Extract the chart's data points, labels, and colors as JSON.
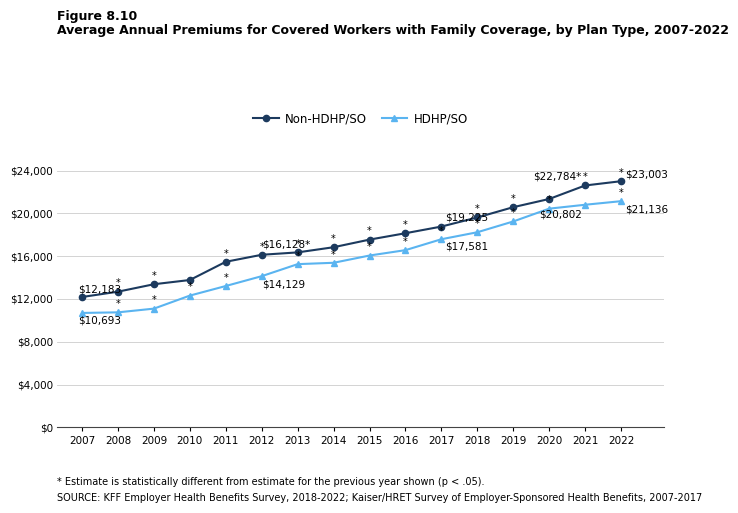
{
  "years": [
    2007,
    2008,
    2009,
    2010,
    2011,
    2012,
    2013,
    2014,
    2015,
    2016,
    2017,
    2018,
    2019,
    2020,
    2021,
    2022
  ],
  "non_hdhp": [
    12183,
    12680,
    13375,
    13770,
    15473,
    16128,
    16351,
    16834,
    17545,
    18142,
    18764,
    19616,
    20576,
    21342,
    22603,
    23003
  ],
  "hdhp": [
    10693,
    10748,
    11096,
    12314,
    13210,
    14129,
    15253,
    15380,
    16058,
    16561,
    17581,
    18233,
    19241,
    20438,
    20802,
    21136
  ],
  "non_hdhp_color": "#1c3a5e",
  "hdhp_color": "#5ab4f0",
  "non_hdhp_label": "Non-HDHP/SO",
  "hdhp_label": "HDHP/SO",
  "title_line1": "Figure 8.10",
  "title_line2": "Average Annual Premiums for Covered Workers with Family Coverage, by Plan Type, 2007-2022",
  "ylim": [
    0,
    26000
  ],
  "yticks": [
    0,
    4000,
    8000,
    12000,
    16000,
    20000,
    24000
  ],
  "footnote1": "* Estimate is statistically different from estimate for the previous year shown (p < .05).",
  "footnote2": "SOURCE: KFF Employer Health Benefits Survey, 2018-2022; Kaiser/HRET Survey of Employer-Sponsored Health Benefits, 2007-2017",
  "non_hdhp_star_years": [
    2008,
    2009,
    2011,
    2012,
    2013,
    2014,
    2015,
    2016,
    2018,
    2019,
    2021,
    2022
  ],
  "hdhp_star_years": [
    2008,
    2009,
    2010,
    2011,
    2013,
    2014,
    2015,
    2016,
    2017,
    2018,
    2019,
    2020,
    2022
  ],
  "background_color": "#ffffff"
}
